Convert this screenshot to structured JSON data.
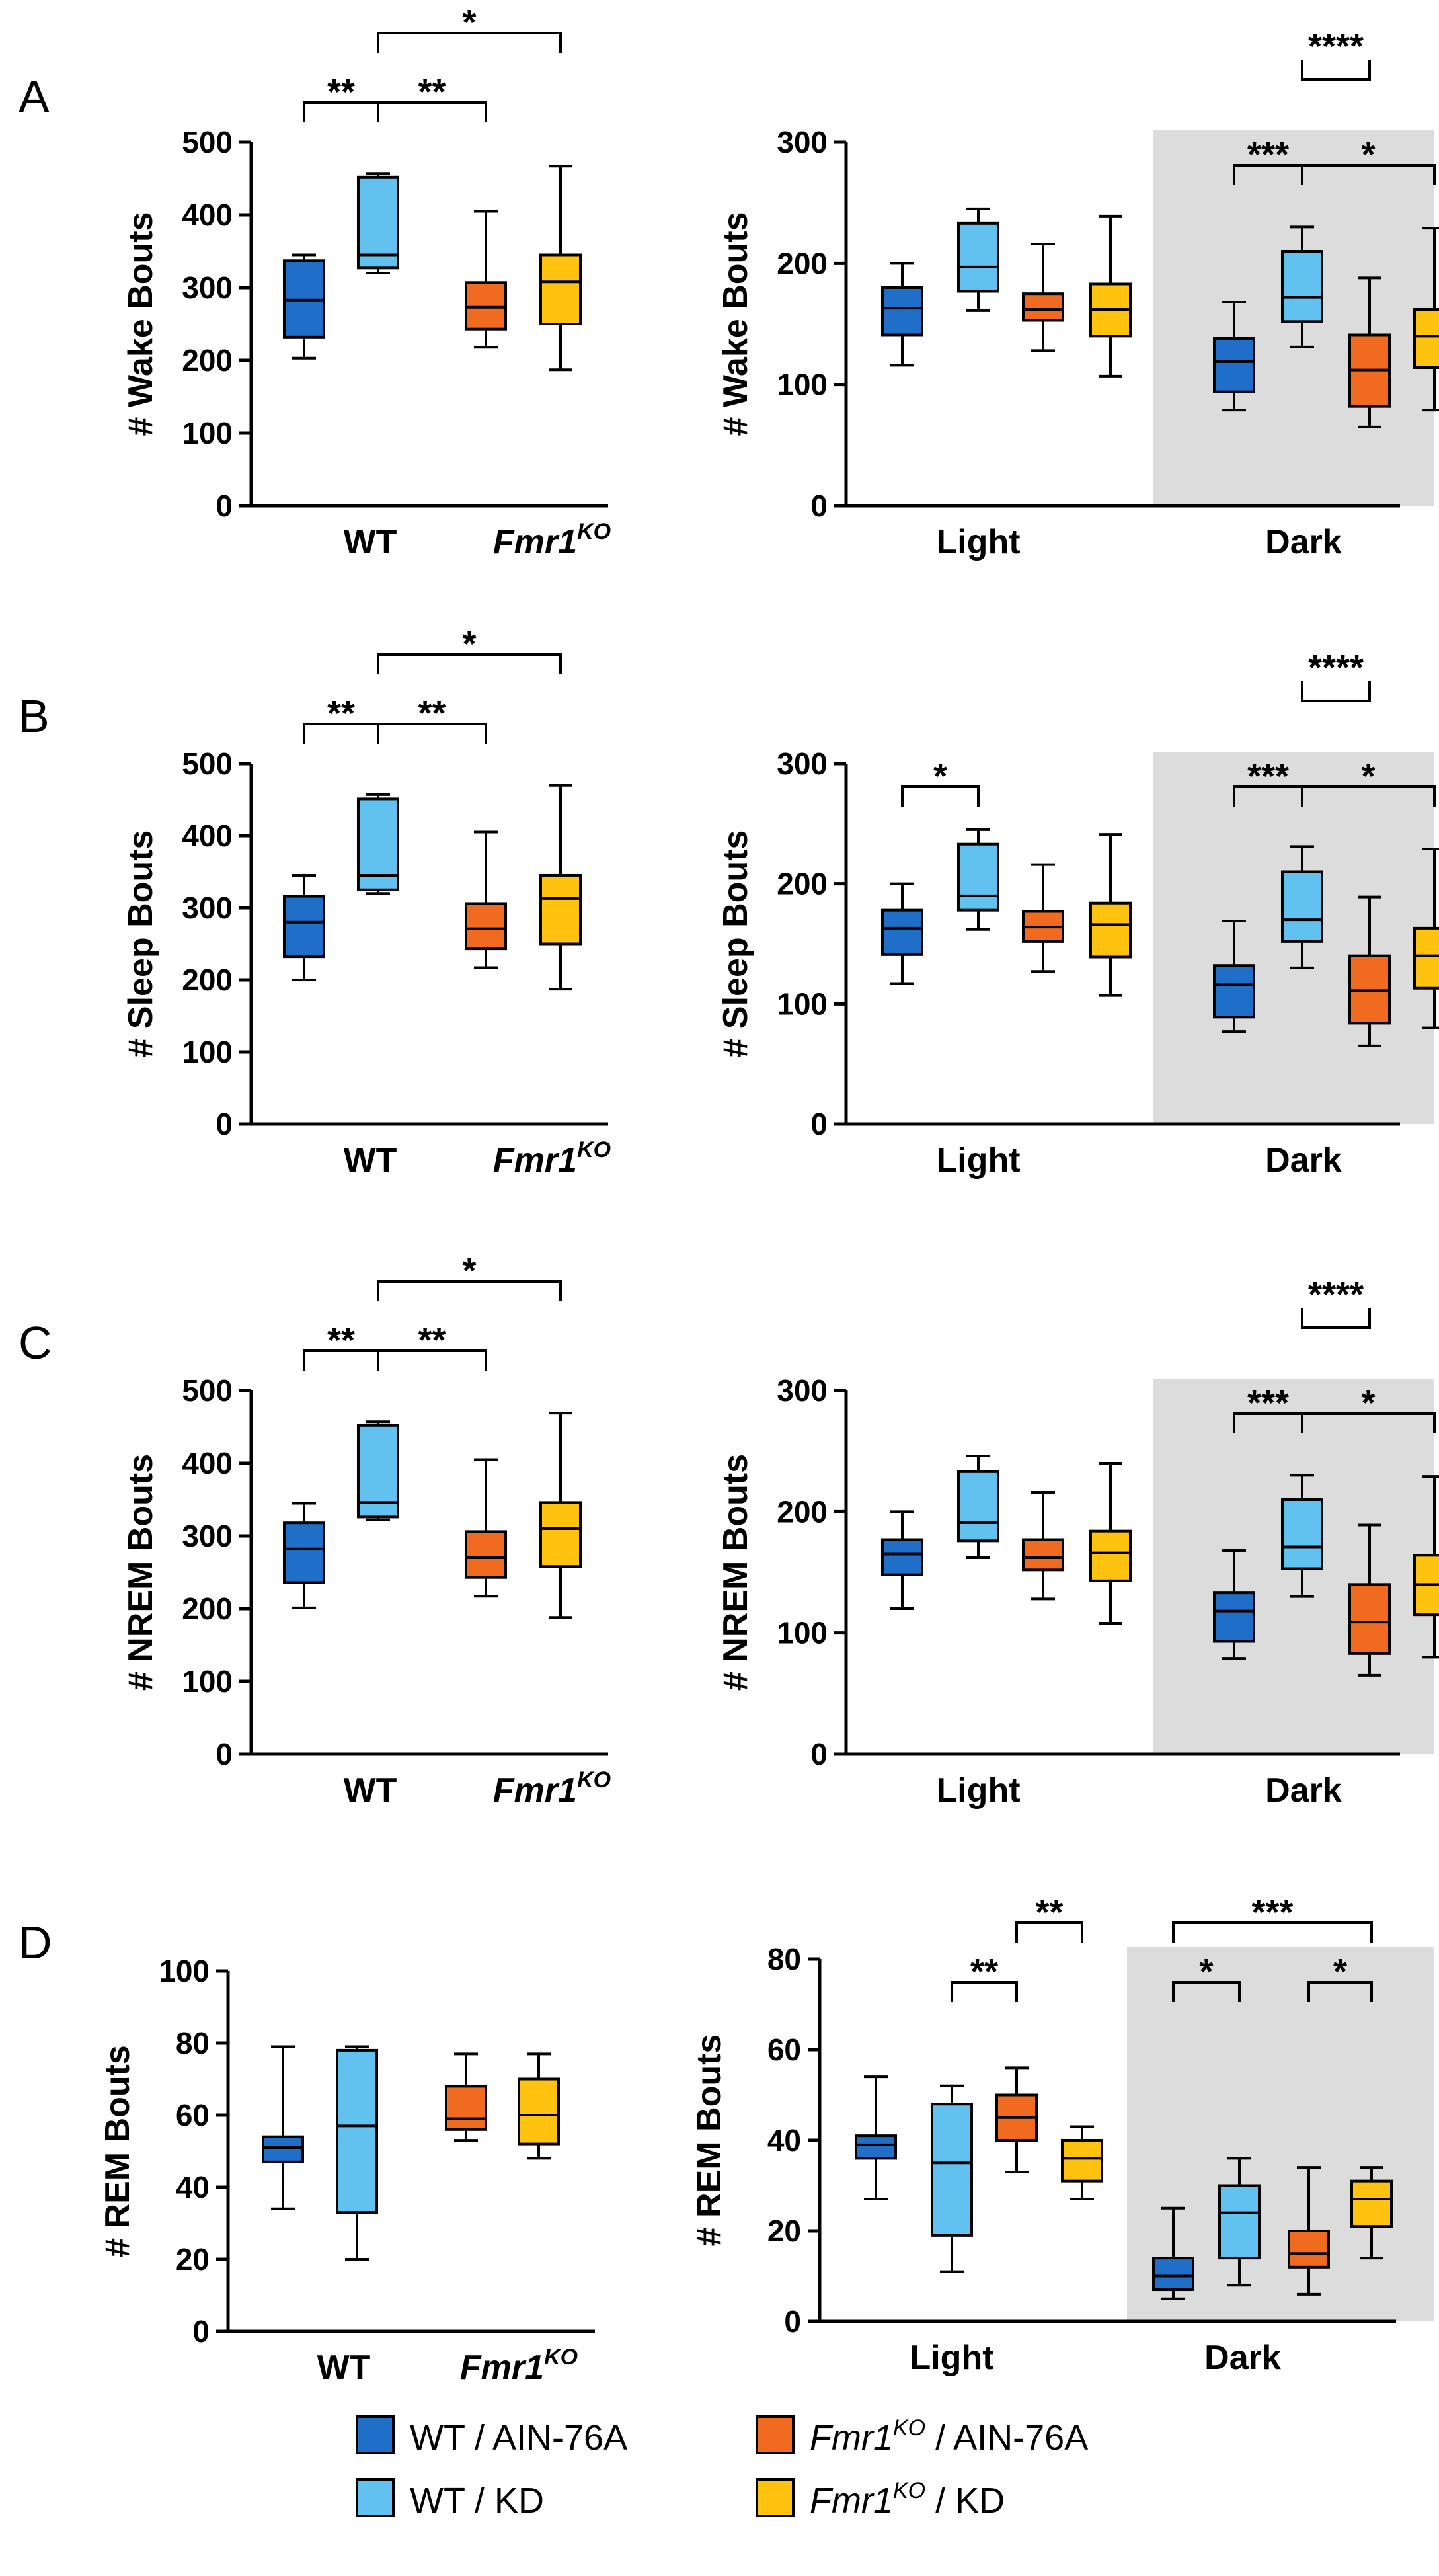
{
  "panels": [
    "A",
    "B",
    "C",
    "D"
  ],
  "legend": [
    {
      "label": "WT / AIN-76A",
      "color": "#1f6fc9"
    },
    {
      "label": "WT / KD",
      "color": "#62c2ef"
    },
    {
      "genotype": "Fmr1",
      "superscript": "KO",
      "label": " / AIN-76A",
      "color": "#f06a1f"
    },
    {
      "genotype": "Fmr1",
      "superscript": "KO",
      "label": " / KD",
      "color": "#ffc20e"
    }
  ],
  "colors": {
    "wt_ain": "#1f6fc9",
    "wt_kd": "#62c2ef",
    "ko_ain": "#f06a1f",
    "ko_kd": "#ffc20e",
    "dark_shade": "#dcdcdc"
  },
  "chart_data": [
    {
      "panel": "A",
      "side": "left",
      "type": "box",
      "ylabel": "# Wake Bouts",
      "ylim": [
        0,
        500
      ],
      "yticks": [
        0,
        100,
        200,
        300,
        400,
        500
      ],
      "groups": [
        {
          "label": "WT"
        },
        {
          "label": "Fmr1",
          "superscript": "KO",
          "italic": true
        }
      ],
      "boxes": [
        {
          "series": "WT / AIN-76A",
          "min": 203,
          "q1": 232,
          "median": 283,
          "q3": 337,
          "max": 345
        },
        {
          "series": "WT / KD",
          "min": 320,
          "q1": 327,
          "median": 345,
          "q3": 452,
          "max": 457
        },
        {
          "series": "Fmr1KO / AIN-76A",
          "min": 218,
          "q1": 243,
          "median": 273,
          "q3": 307,
          "max": 405
        },
        {
          "series": "Fmr1KO / KD",
          "min": 187,
          "q1": 250,
          "median": 308,
          "q3": 345,
          "max": 467
        }
      ],
      "significance": [
        {
          "from": 0,
          "to": 1,
          "label": "**",
          "level": 0
        },
        {
          "from": 1,
          "to": 2,
          "label": "**",
          "level": 0
        },
        {
          "from": 1,
          "to": 3,
          "label": "*",
          "level": 1
        }
      ]
    },
    {
      "panel": "A",
      "side": "right",
      "type": "box",
      "ylabel": "# Wake Bouts",
      "ylim": [
        0,
        300
      ],
      "yticks": [
        0,
        100,
        200,
        300
      ],
      "groups": [
        {
          "label": "Light"
        },
        {
          "label": "Dark",
          "shaded": true
        }
      ],
      "boxes": [
        {
          "series": "WT / AIN-76A",
          "min": 116,
          "q1": 141,
          "median": 163,
          "q3": 180,
          "max": 200
        },
        {
          "series": "WT / KD",
          "min": 161,
          "q1": 177,
          "median": 197,
          "q3": 233,
          "max": 245
        },
        {
          "series": "Fmr1KO / AIN-76A",
          "min": 128,
          "q1": 153,
          "median": 162,
          "q3": 175,
          "max": 216
        },
        {
          "series": "Fmr1KO / KD",
          "min": 107,
          "q1": 140,
          "median": 162,
          "q3": 183,
          "max": 239
        },
        {
          "series": "WT / AIN-76A",
          "min": 79,
          "q1": 94,
          "median": 119,
          "q3": 138,
          "max": 168
        },
        {
          "series": "WT / KD",
          "min": 131,
          "q1": 152,
          "median": 172,
          "q3": 210,
          "max": 230
        },
        {
          "series": "Fmr1KO / AIN-76A",
          "min": 65,
          "q1": 82,
          "median": 112,
          "q3": 141,
          "max": 188
        },
        {
          "series": "Fmr1KO / KD",
          "min": 79,
          "q1": 114,
          "median": 140,
          "q3": 162,
          "max": 229
        }
      ],
      "significance": [
        {
          "from": 4,
          "to": 5,
          "label": "***",
          "level": 0
        },
        {
          "from": 5,
          "to": 7,
          "label": "*",
          "level": 0
        },
        {
          "from": 5,
          "to": 6,
          "label": "****",
          "level": 1,
          "inverted": true
        }
      ]
    },
    {
      "panel": "B",
      "side": "left",
      "type": "box",
      "ylabel": "# Sleep Bouts",
      "ylim": [
        0,
        500
      ],
      "yticks": [
        0,
        100,
        200,
        300,
        400,
        500
      ],
      "groups": [
        {
          "label": "WT"
        },
        {
          "label": "Fmr1",
          "superscript": "KO",
          "italic": true
        }
      ],
      "boxes": [
        {
          "series": "WT / AIN-76A",
          "min": 200,
          "q1": 232,
          "median": 280,
          "q3": 316,
          "max": 345
        },
        {
          "series": "WT / KD",
          "min": 320,
          "q1": 325,
          "median": 345,
          "q3": 451,
          "max": 457
        },
        {
          "series": "Fmr1KO / AIN-76A",
          "min": 217,
          "q1": 243,
          "median": 271,
          "q3": 306,
          "max": 405
        },
        {
          "series": "Fmr1KO / KD",
          "min": 187,
          "q1": 250,
          "median": 313,
          "q3": 345,
          "max": 470
        }
      ],
      "significance": [
        {
          "from": 0,
          "to": 1,
          "label": "**",
          "level": 0
        },
        {
          "from": 1,
          "to": 2,
          "label": "**",
          "level": 0
        },
        {
          "from": 1,
          "to": 3,
          "label": "*",
          "level": 1
        }
      ]
    },
    {
      "panel": "B",
      "side": "right",
      "type": "box",
      "ylabel": "# Sleep Bouts",
      "ylim": [
        0,
        300
      ],
      "yticks": [
        0,
        100,
        200,
        300
      ],
      "groups": [
        {
          "label": "Light"
        },
        {
          "label": "Dark",
          "shaded": true
        }
      ],
      "boxes": [
        {
          "series": "WT / AIN-76A",
          "min": 117,
          "q1": 141,
          "median": 163,
          "q3": 178,
          "max": 200
        },
        {
          "series": "WT / KD",
          "min": 162,
          "q1": 178,
          "median": 190,
          "q3": 233,
          "max": 245
        },
        {
          "series": "Fmr1KO / AIN-76A",
          "min": 127,
          "q1": 152,
          "median": 164,
          "q3": 177,
          "max": 216
        },
        {
          "series": "Fmr1KO / KD",
          "min": 107,
          "q1": 139,
          "median": 166,
          "q3": 184,
          "max": 241
        },
        {
          "series": "WT / AIN-76A",
          "min": 77,
          "q1": 89,
          "median": 116,
          "q3": 132,
          "max": 169
        },
        {
          "series": "WT / KD",
          "min": 130,
          "q1": 152,
          "median": 170,
          "q3": 210,
          "max": 231
        },
        {
          "series": "Fmr1KO / AIN-76A",
          "min": 65,
          "q1": 84,
          "median": 111,
          "q3": 140,
          "max": 189
        },
        {
          "series": "Fmr1KO / KD",
          "min": 80,
          "q1": 113,
          "median": 140,
          "q3": 163,
          "max": 229
        }
      ],
      "significance": [
        {
          "from": 0,
          "to": 1,
          "label": "*",
          "level": 0
        },
        {
          "from": 4,
          "to": 5,
          "label": "***",
          "level": 0
        },
        {
          "from": 5,
          "to": 7,
          "label": "*",
          "level": 0
        },
        {
          "from": 5,
          "to": 6,
          "label": "****",
          "level": 1,
          "inverted": true
        }
      ]
    },
    {
      "panel": "C",
      "side": "left",
      "type": "box",
      "ylabel": "# NREM Bouts",
      "ylim": [
        0,
        500
      ],
      "yticks": [
        0,
        100,
        200,
        300,
        400,
        500
      ],
      "groups": [
        {
          "label": "WT"
        },
        {
          "label": "Fmr1",
          "superscript": "KO",
          "italic": true
        }
      ],
      "boxes": [
        {
          "series": "WT / AIN-76A",
          "min": 201,
          "q1": 236,
          "median": 282,
          "q3": 318,
          "max": 345
        },
        {
          "series": "WT / KD",
          "min": 322,
          "q1": 326,
          "median": 346,
          "q3": 452,
          "max": 457
        },
        {
          "series": "Fmr1KO / AIN-76A",
          "min": 217,
          "q1": 243,
          "median": 270,
          "q3": 306,
          "max": 405
        },
        {
          "series": "Fmr1KO / KD",
          "min": 188,
          "q1": 258,
          "median": 310,
          "q3": 346,
          "max": 469
        }
      ],
      "significance": [
        {
          "from": 0,
          "to": 1,
          "label": "**",
          "level": 0
        },
        {
          "from": 1,
          "to": 2,
          "label": "**",
          "level": 0
        },
        {
          "from": 1,
          "to": 3,
          "label": "*",
          "level": 1
        }
      ]
    },
    {
      "panel": "C",
      "side": "right",
      "type": "box",
      "ylabel": "# NREM Bouts",
      "ylim": [
        0,
        300
      ],
      "yticks": [
        0,
        100,
        200,
        300
      ],
      "groups": [
        {
          "label": "Light"
        },
        {
          "label": "Dark",
          "shaded": true
        }
      ],
      "boxes": [
        {
          "series": "WT / AIN-76A",
          "min": 120,
          "q1": 148,
          "median": 165,
          "q3": 177,
          "max": 200
        },
        {
          "series": "WT / KD",
          "min": 162,
          "q1": 176,
          "median": 191,
          "q3": 233,
          "max": 246
        },
        {
          "series": "Fmr1KO / AIN-76A",
          "min": 128,
          "q1": 152,
          "median": 162,
          "q3": 177,
          "max": 216
        },
        {
          "series": "Fmr1KO / KD",
          "min": 108,
          "q1": 143,
          "median": 166,
          "q3": 184,
          "max": 240
        },
        {
          "series": "WT / AIN-76A",
          "min": 79,
          "q1": 93,
          "median": 118,
          "q3": 133,
          "max": 168
        },
        {
          "series": "WT / KD",
          "min": 130,
          "q1": 153,
          "median": 171,
          "q3": 210,
          "max": 230
        },
        {
          "series": "Fmr1KO / AIN-76A",
          "min": 65,
          "q1": 83,
          "median": 109,
          "q3": 140,
          "max": 189
        },
        {
          "series": "Fmr1KO / KD",
          "min": 80,
          "q1": 115,
          "median": 140,
          "q3": 164,
          "max": 229
        }
      ],
      "significance": [
        {
          "from": 4,
          "to": 5,
          "label": "***",
          "level": 0
        },
        {
          "from": 5,
          "to": 7,
          "label": "*",
          "level": 0
        },
        {
          "from": 5,
          "to": 6,
          "label": "****",
          "level": 1,
          "inverted": true
        }
      ]
    },
    {
      "panel": "D",
      "side": "left",
      "type": "box",
      "ylabel": "# REM Bouts",
      "ylim": [
        0,
        100
      ],
      "yticks": [
        0,
        20,
        40,
        60,
        80,
        100
      ],
      "groups": [
        {
          "label": "WT"
        },
        {
          "label": "Fmr1",
          "superscript": "KO",
          "italic": true
        }
      ],
      "boxes": [
        {
          "series": "WT / AIN-76A",
          "min": 34,
          "q1": 47,
          "median": 51,
          "q3": 54,
          "max": 79
        },
        {
          "series": "WT / KD",
          "min": 20,
          "q1": 33,
          "median": 57,
          "q3": 78,
          "max": 79
        },
        {
          "series": "Fmr1KO / AIN-76A",
          "min": 53,
          "q1": 56,
          "median": 59,
          "q3": 68,
          "max": 77
        },
        {
          "series": "Fmr1KO / KD",
          "min": 48,
          "q1": 52,
          "median": 60,
          "q3": 70,
          "max": 77
        }
      ],
      "significance": []
    },
    {
      "panel": "D",
      "side": "right",
      "type": "box",
      "ylabel": "# REM Bouts",
      "ylim": [
        0,
        80
      ],
      "yticks": [
        0,
        20,
        40,
        60,
        80
      ],
      "groups": [
        {
          "label": "Light"
        },
        {
          "label": "Dark",
          "shaded": true
        }
      ],
      "boxes": [
        {
          "series": "WT / AIN-76A",
          "min": 27,
          "q1": 36,
          "median": 39,
          "q3": 41,
          "max": 54
        },
        {
          "series": "WT / KD",
          "min": 11,
          "q1": 19,
          "median": 35,
          "q3": 48,
          "max": 52
        },
        {
          "series": "Fmr1KO / AIN-76A",
          "min": 33,
          "q1": 40,
          "median": 45,
          "q3": 50,
          "max": 56
        },
        {
          "series": "Fmr1KO / KD",
          "min": 27,
          "q1": 31,
          "median": 36,
          "q3": 40,
          "max": 43
        },
        {
          "series": "WT / AIN-76A",
          "min": 5,
          "q1": 7,
          "median": 10,
          "q3": 14,
          "max": 25
        },
        {
          "series": "WT / KD",
          "min": 8,
          "q1": 14,
          "median": 24,
          "q3": 30,
          "max": 36
        },
        {
          "series": "Fmr1KO / AIN-76A",
          "min": 6,
          "q1": 12,
          "median": 15,
          "q3": 20,
          "max": 34
        },
        {
          "series": "Fmr1KO / KD",
          "min": 14,
          "q1": 21,
          "median": 27,
          "q3": 31,
          "max": 34
        }
      ],
      "significance": [
        {
          "from": 1,
          "to": 2,
          "label": "**",
          "level": 0
        },
        {
          "from": 2,
          "to": 3,
          "label": "**",
          "level": 1
        },
        {
          "from": 4,
          "to": 5,
          "label": "*",
          "level": 0
        },
        {
          "from": 6,
          "to": 7,
          "label": "*",
          "level": 0
        },
        {
          "from": 4,
          "to": 7,
          "label": "***",
          "level": 1
        }
      ]
    }
  ]
}
